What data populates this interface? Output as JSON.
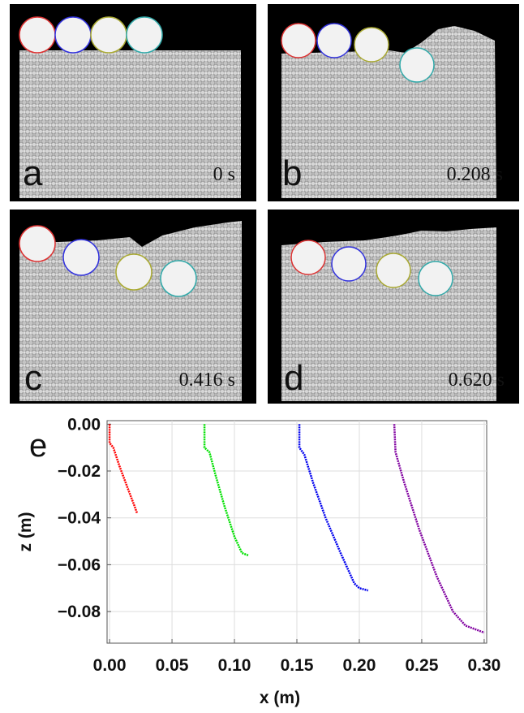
{
  "panels": [
    {
      "letter": "a",
      "time": "0 s"
    },
    {
      "letter": "b",
      "time": "0.208 s"
    },
    {
      "letter": "c",
      "time": "0.416 s"
    },
    {
      "letter": "d",
      "time": "0.620 s"
    }
  ],
  "chart_data": {
    "type": "line",
    "label": "e",
    "x_label": "x (m)",
    "y_label": "z (m)",
    "xlim": [
      -0.002,
      0.302
    ],
    "ylim": [
      -0.0935,
      0.0015
    ],
    "xticks": [
      {
        "value": 0,
        "label": "0.00"
      },
      {
        "value": 0.05,
        "label": "0.05"
      },
      {
        "value": 0.1,
        "label": "0.10"
      },
      {
        "value": 0.15,
        "label": "0.15"
      },
      {
        "value": 0.2,
        "label": "0.20"
      },
      {
        "value": 0.25,
        "label": "0.25"
      },
      {
        "value": 0.3,
        "label": "0.30"
      }
    ],
    "yticks": [
      {
        "value": 0,
        "label": "0.00"
      },
      {
        "value": -0.02,
        "label": "−0.02"
      },
      {
        "value": -0.04,
        "label": "−0.04"
      },
      {
        "value": -0.06,
        "label": "−0.06"
      },
      {
        "value": -0.08,
        "label": "−0.08"
      }
    ],
    "grid": true,
    "series": [
      {
        "color": "#ff0000",
        "x": [
          0,
          0,
          0.003,
          0.008,
          0.015,
          0.02,
          0.022
        ],
        "values": [
          0,
          -0.008,
          -0.01,
          -0.018,
          -0.028,
          -0.035,
          -0.038
        ]
      },
      {
        "color": "#00e000",
        "x": [
          0.076,
          0.076,
          0.08,
          0.085,
          0.092,
          0.1,
          0.106,
          0.111
        ],
        "values": [
          0,
          -0.01,
          -0.012,
          -0.022,
          -0.035,
          -0.048,
          -0.055,
          -0.056
        ]
      },
      {
        "color": "#0000ee",
        "x": [
          0.152,
          0.152,
          0.156,
          0.163,
          0.173,
          0.185,
          0.196,
          0.2,
          0.207
        ],
        "values": [
          0,
          -0.01,
          -0.013,
          -0.025,
          -0.04,
          -0.055,
          -0.068,
          -0.07,
          -0.071
        ]
      },
      {
        "color": "#8000a0",
        "x": [
          0.228,
          0.229,
          0.236,
          0.248,
          0.262,
          0.275,
          0.285,
          0.3
        ],
        "values": [
          0,
          -0.012,
          -0.025,
          -0.045,
          -0.065,
          -0.08,
          -0.086,
          -0.089
        ]
      }
    ]
  }
}
